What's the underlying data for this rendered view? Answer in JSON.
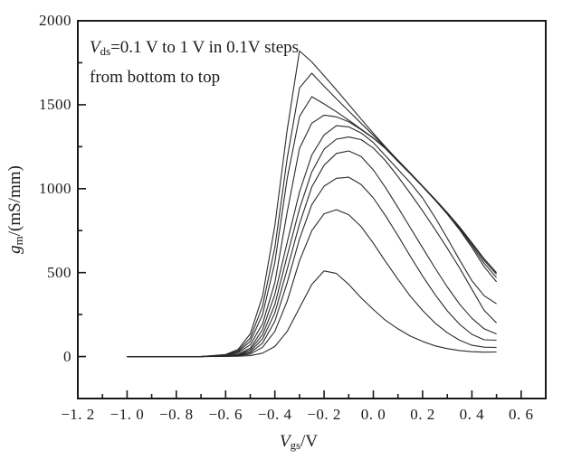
{
  "chart_data": {
    "type": "line",
    "title": "",
    "annotation": {
      "line1_var": "V",
      "line1_sub": "ds",
      "line1_rest": "=0.1 V to 1 V in 0.1V steps",
      "line2": "from bottom to top"
    },
    "xlabel": {
      "var": "V",
      "sub": "gs",
      "rest": "/V"
    },
    "ylabel": {
      "var": "g",
      "sub": "m",
      "rest": "/(mS/mm)"
    },
    "axes": {
      "xlim": [
        -1.2,
        0.7
      ],
      "ylim": [
        -250,
        2000
      ],
      "x_major_ticks": [
        -1.2,
        -1.0,
        -0.8,
        -0.6,
        -0.4,
        -0.2,
        0.0,
        0.2,
        0.4,
        0.6
      ],
      "x_minor_ticks": [
        -1.1,
        -0.9,
        -0.7,
        -0.5,
        -0.3,
        -0.1,
        0.1,
        0.3,
        0.5
      ],
      "x_tick_labels": [
        "−1. 2",
        "−1. 0",
        "−0. 8",
        "−0. 6",
        "−0. 4",
        "−0. 2",
        "0. 0",
        "0. 2",
        "0. 4",
        "0. 6"
      ],
      "y_major_ticks": [
        0,
        500,
        1000,
        1500,
        2000
      ],
      "y_minor_ticks": [
        250,
        750,
        1250,
        1750
      ],
      "y_tick_labels": [
        "0",
        "500",
        "1000",
        "1500",
        "2000"
      ],
      "grid": false,
      "ticks_direction": "in"
    },
    "frame_color": "#1a1a1a",
    "line_color": "#2a2a2a",
    "x": [
      -1.0,
      -0.9,
      -0.8,
      -0.7,
      -0.6,
      -0.55,
      -0.5,
      -0.45,
      -0.4,
      -0.35,
      -0.3,
      -0.25,
      -0.2,
      -0.15,
      -0.1,
      -0.05,
      0.0,
      0.05,
      0.1,
      0.15,
      0.2,
      0.25,
      0.3,
      0.35,
      0.4,
      0.45,
      0.5
    ],
    "series": [
      {
        "name": "Vds=0.1 V",
        "values": [
          0,
          0,
          0,
          0,
          1,
          2,
          5,
          20,
          60,
          150,
          290,
          430,
          510,
          495,
          430,
          350,
          280,
          215,
          165,
          122,
          90,
          64,
          47,
          36,
          29,
          26,
          27
        ]
      },
      {
        "name": "Vds=0.2 V",
        "values": [
          0,
          0,
          0,
          0,
          2,
          5,
          15,
          55,
          150,
          330,
          570,
          750,
          850,
          875,
          845,
          775,
          675,
          565,
          460,
          360,
          275,
          200,
          142,
          97,
          67,
          56,
          54
        ]
      },
      {
        "name": "Vds=0.3 V",
        "values": [
          0,
          0,
          0,
          0,
          2,
          7,
          22,
          80,
          210,
          440,
          700,
          905,
          1015,
          1062,
          1068,
          1025,
          945,
          838,
          720,
          598,
          480,
          370,
          272,
          192,
          132,
          100,
          97
        ]
      },
      {
        "name": "Vds=0.4 V",
        "values": [
          0,
          0,
          0,
          0,
          3,
          9,
          30,
          105,
          260,
          520,
          790,
          1010,
          1140,
          1210,
          1225,
          1192,
          1112,
          1005,
          888,
          768,
          648,
          528,
          415,
          312,
          228,
          165,
          135
        ]
      },
      {
        "name": "Vds=0.5 V",
        "values": [
          0,
          0,
          0,
          0,
          3,
          11,
          40,
          130,
          310,
          600,
          880,
          1100,
          1235,
          1295,
          1308,
          1292,
          1242,
          1165,
          1072,
          972,
          868,
          758,
          645,
          528,
          400,
          275,
          200
        ]
      },
      {
        "name": "Vds=0.6 V",
        "values": [
          0,
          0,
          0,
          0,
          4,
          13,
          50,
          160,
          370,
          680,
          980,
          1200,
          1320,
          1375,
          1368,
          1332,
          1275,
          1195,
          1115,
          1035,
          945,
          830,
          705,
          575,
          452,
          362,
          314
        ]
      },
      {
        "name": "Vds=0.7 V",
        "values": [
          0,
          0,
          0,
          0,
          6,
          22,
          70,
          195,
          440,
          860,
          1240,
          1390,
          1438,
          1428,
          1398,
          1352,
          1300,
          1238,
          1162,
          1088,
          1012,
          932,
          848,
          755,
          650,
          535,
          445
        ]
      },
      {
        "name": "Vds=0.8 V",
        "values": [
          0,
          0,
          0,
          0,
          8,
          28,
          90,
          250,
          560,
          1060,
          1430,
          1548,
          1505,
          1458,
          1408,
          1355,
          1302,
          1242,
          1165,
          1090,
          1013,
          934,
          852,
          762,
          662,
          556,
          470
        ]
      },
      {
        "name": "Vds=0.9 V",
        "values": [
          0,
          0,
          0,
          0,
          10,
          34,
          110,
          300,
          650,
          1180,
          1600,
          1688,
          1610,
          1535,
          1462,
          1390,
          1318,
          1245,
          1168,
          1092,
          1015,
          936,
          855,
          768,
          672,
          572,
          490
        ]
      },
      {
        "name": "Vds=1.0 V",
        "values": [
          0,
          0,
          0,
          0,
          12,
          42,
          135,
          360,
          780,
          1350,
          1820,
          1755,
          1672,
          1588,
          1502,
          1415,
          1330,
          1248,
          1170,
          1094,
          1016,
          938,
          858,
          772,
          678,
          582,
          500
        ]
      }
    ]
  }
}
